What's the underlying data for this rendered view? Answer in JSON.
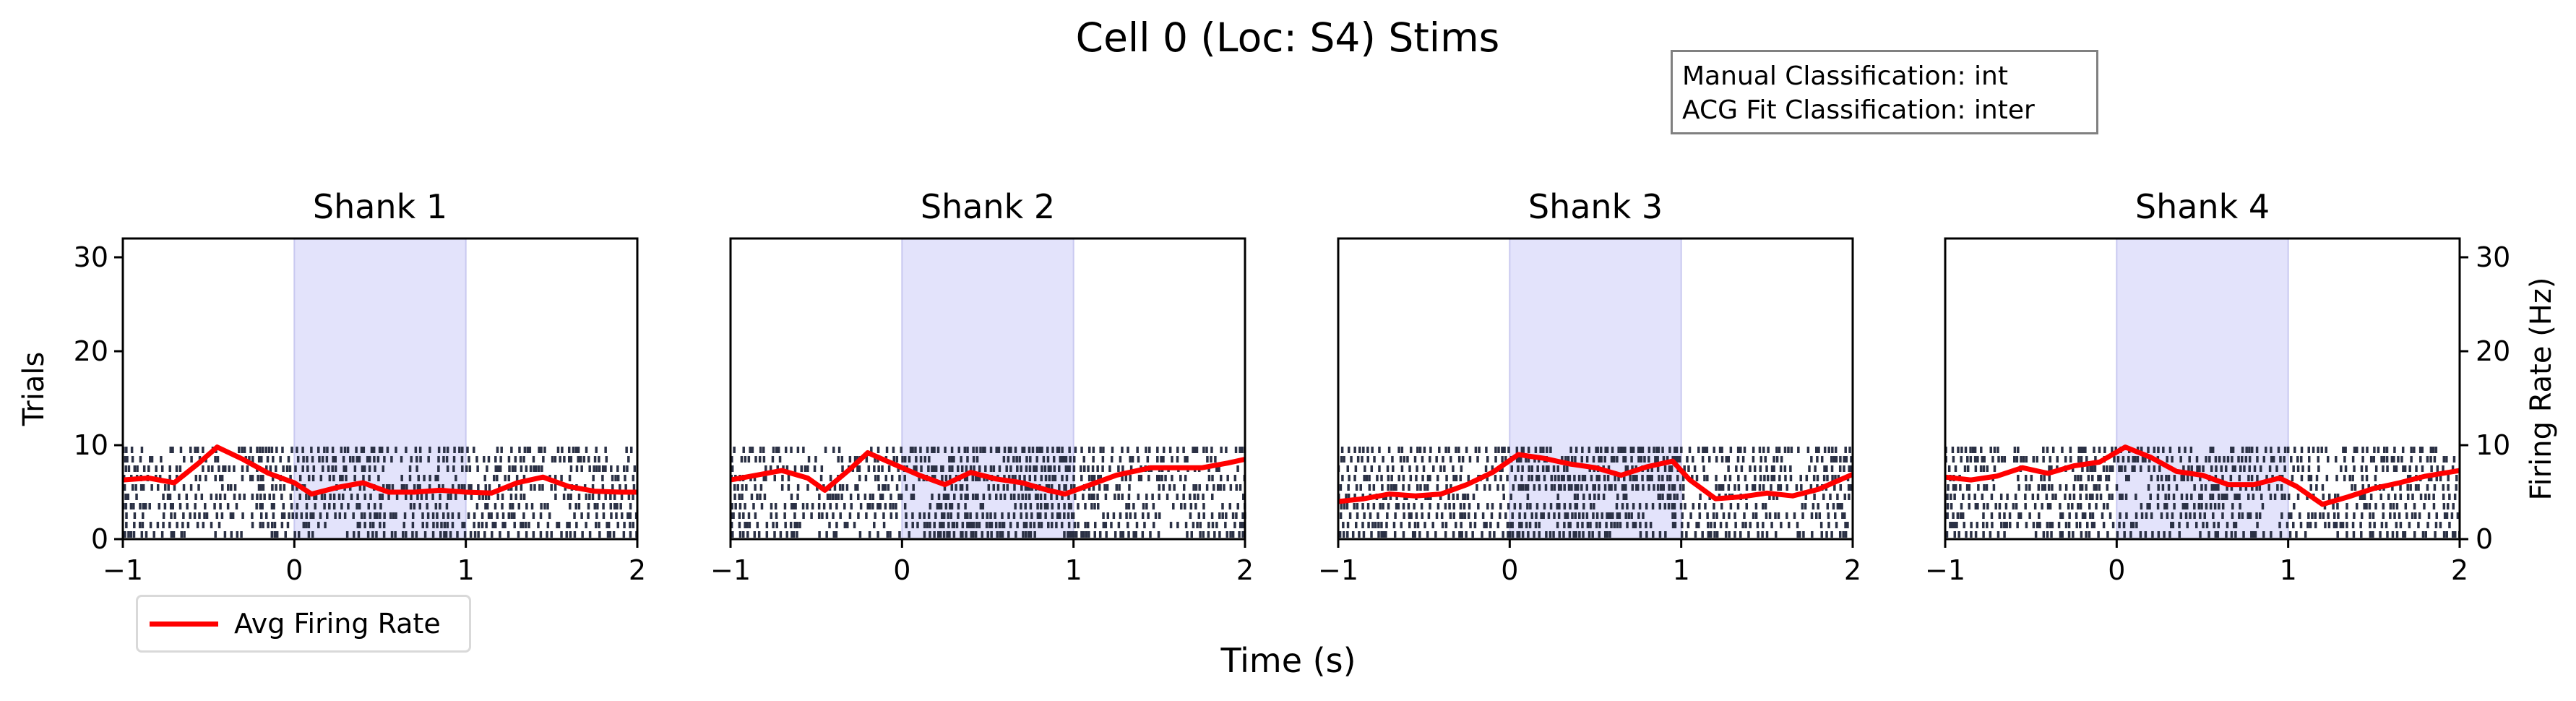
{
  "title": "Cell 0 (Loc: S4) Stims",
  "info_box": {
    "manual": "Manual Classification: int",
    "acg": "ACG Fit Classification: inter"
  },
  "legend": {
    "label": "Avg Firing Rate",
    "color": "#ff0000"
  },
  "colors": {
    "raster": "#2b3145",
    "avg_line": "#ff0000",
    "stim_shade": "#e3e3fb",
    "stim_edge": "#c9c9f0"
  },
  "chart_data": [
    {
      "type": "raster",
      "title": "Shank 1",
      "xlabel": "Time (s)",
      "ylabel": "Trials",
      "xlim": [
        -1,
        2
      ],
      "ylim_trials": [
        0,
        32
      ],
      "ylim_rate": [
        0,
        32
      ],
      "xticks": [
        "−1",
        "0",
        "1",
        "2"
      ],
      "yticks": [
        "0",
        "10",
        "20",
        "30"
      ],
      "stim_window": [
        0,
        1
      ],
      "trials": 10,
      "avg_firing_rate": {
        "x": [
          -1.0,
          -0.85,
          -0.7,
          -0.55,
          -0.45,
          -0.3,
          -0.15,
          0.0,
          0.1,
          0.25,
          0.4,
          0.55,
          0.7,
          0.85,
          1.0,
          1.15,
          1.3,
          1.45,
          1.6,
          1.75,
          1.9,
          2.0
        ],
        "y": [
          6.3,
          6.5,
          6.0,
          8.2,
          9.8,
          8.5,
          7.0,
          6.0,
          4.8,
          5.5,
          6.0,
          5.0,
          5.0,
          5.2,
          5.0,
          4.9,
          6.0,
          6.6,
          5.6,
          5.1,
          5.0,
          5.0
        ]
      }
    },
    {
      "type": "raster",
      "title": "Shank 2",
      "xlim": [
        -1,
        2
      ],
      "ylim_trials": [
        0,
        32
      ],
      "xticks": [
        "−1",
        "0",
        "1",
        "2"
      ],
      "stim_window": [
        0,
        1
      ],
      "trials": 10,
      "avg_firing_rate": {
        "x": [
          -1.0,
          -0.85,
          -0.7,
          -0.55,
          -0.45,
          -0.3,
          -0.2,
          -0.05,
          0.1,
          0.25,
          0.4,
          0.55,
          0.7,
          0.85,
          0.95,
          1.1,
          1.25,
          1.45,
          1.6,
          1.75,
          1.9,
          2.0
        ],
        "y": [
          6.3,
          6.8,
          7.3,
          6.5,
          5.2,
          7.5,
          9.2,
          8.0,
          6.8,
          5.8,
          7.1,
          6.4,
          6.0,
          5.2,
          4.8,
          5.8,
          6.8,
          7.6,
          7.6,
          7.6,
          8.1,
          8.5
        ]
      }
    },
    {
      "type": "raster",
      "title": "Shank 3",
      "xlim": [
        -1,
        2
      ],
      "ylim_trials": [
        0,
        32
      ],
      "xticks": [
        "−1",
        "0",
        "1",
        "2"
      ],
      "stim_window": [
        0,
        1
      ],
      "trials": 10,
      "avg_firing_rate": {
        "x": [
          -1.0,
          -0.85,
          -0.7,
          -0.55,
          -0.4,
          -0.25,
          -0.1,
          0.05,
          0.2,
          0.35,
          0.5,
          0.65,
          0.8,
          0.95,
          1.05,
          1.2,
          1.35,
          1.5,
          1.65,
          1.8,
          2.0
        ],
        "y": [
          4.0,
          4.3,
          4.8,
          4.6,
          4.8,
          5.8,
          7.1,
          9.0,
          8.6,
          8.0,
          7.6,
          6.8,
          7.7,
          8.3,
          6.3,
          4.3,
          4.5,
          4.9,
          4.6,
          5.3,
          6.9
        ]
      }
    },
    {
      "type": "raster",
      "title": "Shank 4",
      "ylabel_right": "Firing Rate (Hz)",
      "xlim": [
        -1,
        2
      ],
      "ylim_rate": [
        0,
        32
      ],
      "xticks": [
        "−1",
        "0",
        "1",
        "2"
      ],
      "yticks": [
        "0",
        "10",
        "20",
        "30"
      ],
      "stim_window": [
        0,
        1
      ],
      "trials": 10,
      "avg_firing_rate": {
        "x": [
          -1.0,
          -0.85,
          -0.7,
          -0.55,
          -0.4,
          -0.25,
          -0.1,
          0.05,
          0.2,
          0.35,
          0.5,
          0.65,
          0.8,
          0.95,
          1.05,
          1.2,
          1.35,
          1.5,
          1.65,
          1.8,
          2.0
        ],
        "y": [
          6.6,
          6.3,
          6.7,
          7.6,
          7.0,
          7.8,
          8.2,
          9.8,
          8.7,
          7.2,
          6.8,
          5.8,
          5.8,
          6.5,
          5.6,
          3.7,
          4.5,
          5.4,
          6.0,
          6.7,
          7.3
        ]
      }
    }
  ],
  "shared_xlabel": "Time (s)"
}
